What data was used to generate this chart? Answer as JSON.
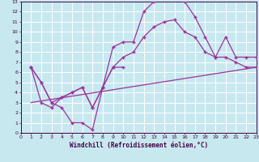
{
  "xlabel": "Windchill (Refroidissement éolien,°C)",
  "background_color": "#c8e8f0",
  "grid_color": "#ffffff",
  "line_color": "#993399",
  "xlim": [
    0,
    23
  ],
  "ylim": [
    0,
    13
  ],
  "xticks": [
    0,
    1,
    2,
    3,
    4,
    5,
    6,
    7,
    8,
    9,
    10,
    11,
    12,
    13,
    14,
    15,
    16,
    17,
    18,
    19,
    20,
    21,
    22,
    23
  ],
  "yticks": [
    0,
    1,
    2,
    3,
    4,
    5,
    6,
    7,
    8,
    9,
    10,
    11,
    12,
    13
  ],
  "line1_x": [
    1,
    2,
    3,
    4,
    5,
    6,
    7,
    8,
    9,
    10,
    11,
    12,
    13,
    14,
    15,
    16,
    17,
    18,
    19,
    20,
    21,
    22,
    23
  ],
  "line1_y": [
    6.5,
    5.0,
    3.0,
    2.5,
    1.0,
    1.0,
    0.3,
    4.5,
    8.5,
    9.0,
    9.0,
    12.0,
    13.0,
    13.3,
    13.3,
    13.0,
    11.5,
    9.5,
    7.5,
    7.5,
    7.0,
    6.5,
    6.5
  ],
  "line2_x": [
    1,
    2,
    3,
    4,
    5,
    6,
    7,
    8,
    9,
    10,
    11,
    12,
    13,
    14,
    15,
    16,
    17,
    18,
    19,
    20,
    21,
    22,
    23
  ],
  "line2_y": [
    6.5,
    3.0,
    2.5,
    3.5,
    4.0,
    4.5,
    2.5,
    4.5,
    6.5,
    7.5,
    8.0,
    9.5,
    10.5,
    11.0,
    11.2,
    10.0,
    9.5,
    8.0,
    7.5,
    9.5,
    7.5,
    7.5,
    7.5
  ],
  "line3_x": [
    1,
    2,
    3,
    4,
    5,
    6,
    7,
    8,
    9,
    10
  ],
  "line3_y": [
    6.5,
    5.0,
    3.0,
    3.5,
    4.0,
    4.5,
    2.5,
    4.5,
    6.5,
    6.5
  ],
  "line4_x": [
    1,
    23
  ],
  "line4_y": [
    3.0,
    6.5
  ]
}
